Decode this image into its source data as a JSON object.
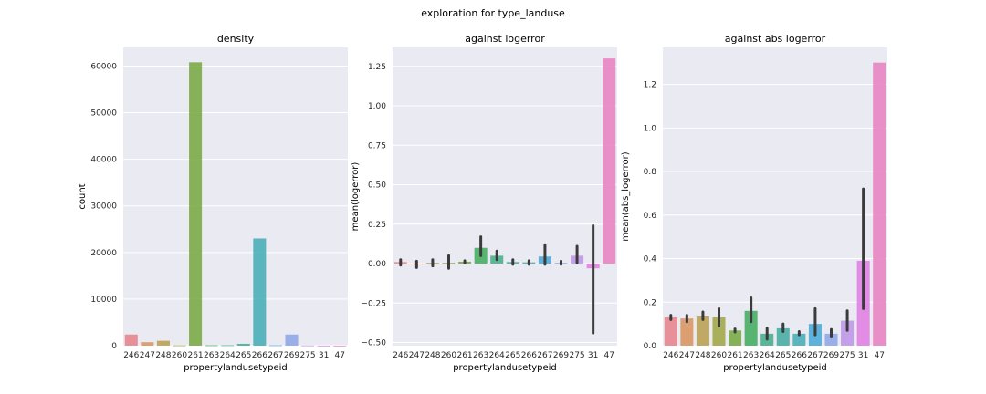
{
  "suptitle": "exploration for type_landuse",
  "style": {
    "axes_bg": "#eaeaf2",
    "grid": "#ffffff",
    "errbar": "#3b3b3b",
    "bar_alpha": 0.85
  },
  "chart_data": [
    {
      "type": "bar",
      "title": "density",
      "xlabel": "propertylandusetypeid",
      "ylabel": "count",
      "categories": [
        "246",
        "247",
        "248",
        "260",
        "261",
        "263",
        "264",
        "265",
        "266",
        "267",
        "269",
        "275",
        "31",
        "47"
      ],
      "colors": [
        "#e8808a",
        "#d9925a",
        "#b99c4c",
        "#9da53f",
        "#74a73d",
        "#3eaa5a",
        "#3fae87",
        "#40ac9f",
        "#41acb6",
        "#44a7d6",
        "#8ba4e8",
        "#bd93ea",
        "#e07be3",
        "#e67fbe"
      ],
      "values": [
        2400,
        750,
        1050,
        60,
        60800,
        80,
        90,
        400,
        23000,
        80,
        2400,
        40,
        3,
        2
      ],
      "errors": null,
      "ylim": [
        0,
        64000
      ],
      "yticks": [
        0,
        10000,
        20000,
        30000,
        40000,
        50000,
        60000
      ],
      "ytick_labels": [
        "0",
        "10000",
        "20000",
        "30000",
        "40000",
        "50000",
        "60000"
      ],
      "grid": true
    },
    {
      "type": "bar",
      "title": "against logerror",
      "xlabel": "propertylandusetypeid",
      "ylabel": "mean(logerror)",
      "categories": [
        "246",
        "247",
        "248",
        "260",
        "261",
        "263",
        "264",
        "265",
        "266",
        "267",
        "269",
        "275",
        "31",
        "47"
      ],
      "colors": [
        "#e8808a",
        "#d9925a",
        "#b99c4c",
        "#9da53f",
        "#74a73d",
        "#3eaa5a",
        "#3fae87",
        "#40ac9f",
        "#41acb6",
        "#44a7d6",
        "#8ba4e8",
        "#bd93ea",
        "#e07be3",
        "#e67fbe"
      ],
      "values": [
        0.01,
        -0.005,
        0.005,
        0.005,
        0.012,
        0.1,
        0.05,
        0.01,
        0.008,
        0.045,
        0.005,
        0.05,
        -0.03,
        1.3
      ],
      "errors": [
        [
          -0.01,
          0.025
        ],
        [
          -0.025,
          0.015
        ],
        [
          -0.015,
          0.025
        ],
        [
          -0.03,
          0.05
        ],
        [
          0.005,
          0.018
        ],
        [
          0.05,
          0.17
        ],
        [
          0.025,
          0.08
        ],
        [
          -0.005,
          0.025
        ],
        [
          -0.005,
          0.018
        ],
        [
          -0.005,
          0.12
        ],
        [
          -0.005,
          0.015
        ],
        [
          0.005,
          0.11
        ],
        [
          -0.44,
          0.24
        ],
        [
          1.3,
          1.3
        ]
      ],
      "ylim": [
        -0.52,
        1.37
      ],
      "yticks": [
        -0.5,
        -0.25,
        0,
        0.25,
        0.5,
        0.75,
        1.0,
        1.25
      ],
      "ytick_labels": [
        "−0.50",
        "−0.25",
        "0.00",
        "0.25",
        "0.50",
        "0.75",
        "1.00",
        "1.25"
      ],
      "grid": true
    },
    {
      "type": "bar",
      "title": "against abs logerror",
      "xlabel": "propertylandusetypeid",
      "ylabel": "mean(abs_logerror)",
      "categories": [
        "246",
        "247",
        "248",
        "260",
        "261",
        "263",
        "264",
        "265",
        "266",
        "267",
        "269",
        "275",
        "31",
        "47"
      ],
      "colors": [
        "#e8808a",
        "#d9925a",
        "#b99c4c",
        "#9da53f",
        "#74a73d",
        "#3eaa5a",
        "#3fae87",
        "#40ac9f",
        "#41acb6",
        "#44a7d6",
        "#8ba4e8",
        "#bd93ea",
        "#e07be3",
        "#e67fbe"
      ],
      "values": [
        0.13,
        0.125,
        0.135,
        0.13,
        0.07,
        0.16,
        0.055,
        0.08,
        0.055,
        0.1,
        0.055,
        0.115,
        0.39,
        1.3
      ],
      "errors": [
        [
          0.12,
          0.14
        ],
        [
          0.11,
          0.14
        ],
        [
          0.12,
          0.155
        ],
        [
          0.09,
          0.17
        ],
        [
          0.063,
          0.077
        ],
        [
          0.11,
          0.22
        ],
        [
          0.03,
          0.08
        ],
        [
          0.065,
          0.1
        ],
        [
          0.05,
          0.065
        ],
        [
          0.05,
          0.17
        ],
        [
          0.04,
          0.075
        ],
        [
          0.07,
          0.16
        ],
        [
          0.17,
          0.72
        ],
        [
          1.3,
          1.3
        ]
      ],
      "ylim": [
        0,
        1.37
      ],
      "yticks": [
        0,
        0.2,
        0.4,
        0.6,
        0.8,
        1.0,
        1.2
      ],
      "ytick_labels": [
        "0.0",
        "0.2",
        "0.4",
        "0.6",
        "0.8",
        "1.0",
        "1.2"
      ],
      "grid": true
    }
  ]
}
